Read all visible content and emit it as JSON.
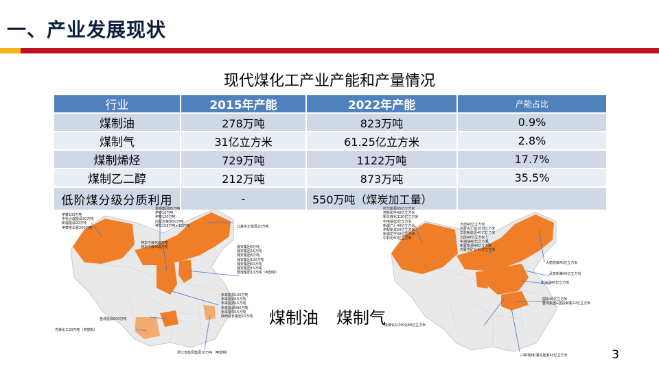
{
  "slide": {
    "title": "一、产业发展现状",
    "page_number": "3",
    "colors": {
      "accent_yellow": "#f2b316",
      "accent_red": "#c0111e",
      "table_header": "#4f81bd",
      "map_orange": "#f07e28"
    }
  },
  "table": {
    "title": "现代煤化工产业产能和产量情况",
    "headers": [
      "行业",
      "2015年产能",
      "2022年产能",
      "产能占比"
    ],
    "rows": [
      [
        "煤制油",
        "278万吨",
        "823万吨",
        "0.9%"
      ],
      [
        "煤制气",
        "31亿立方米",
        "61.25亿立方米",
        "2.8%"
      ],
      [
        "煤制烯烃",
        "729万吨",
        "1122万吨",
        "17.7%"
      ],
      [
        "煤制乙二醇",
        "212万吨",
        "873万吨",
        "35.5%"
      ],
      [
        "低阶煤分级分质利用",
        "-",
        "550万吨（煤炭加工量）",
        ""
      ]
    ]
  },
  "maps": {
    "oil_label": "煤制油",
    "gas_label": "煤制气",
    "oil_annotations": {
      "xinjiang": [
        "伊泰100万吨",
        "中科合成能源20万吨",
        "新疆能源20万吨",
        "伊泰金华晋200万吨"
      ],
      "inner_mongolia": [
        "首钢集团85万吨",
        "伊泰16万吨",
        "伊泰120万吨",
        "内蒙古荣信50万吨",
        "神华108万吨+18万吨"
      ],
      "northeast": [
        "辽鑫中正能源20万吨"
      ],
      "ningxia": [
        "神华宁煤400万吨",
        "神华宁煤400万吨"
      ],
      "shaanxi_right": [
        "潞安集团6万吨",
        "潞安集团16万吨",
        "潞安集团6万吨",
        "潞安集团100万吨",
        "潞安集团60万吨",
        "潞安集团15万吨",
        "晋煤集团10万吨（甲醇制）"
      ],
      "shaanxi_low": [
        "未来能源100万吨",
        "未来能源15万吨",
        "未来能源15万吨",
        "未来能源400万吨",
        "未来能源15万吨",
        "陕西延长集团10万吨"
      ],
      "guizhou": [
        "盘县能源600万吨"
      ],
      "yunnan": [
        "先锋化工20万吨（甲醇制）"
      ],
      "bottom": [
        "浙江省能源集团10万吨（甲醇制）"
      ]
    },
    "gas_annotations": {
      "xinjiang": [
        "庆华能源55亿立方米",
        "若新和丰40亿立方米",
        "新天煤化工20亿立方米",
        "中电投60亿立方米",
        "新疆广汇40亿立方米",
        "伊犁新天20亿立方米",
        "新疆龙宇40亿立方米",
        "中石化80亿立方米"
      ],
      "inner_mongolia": [
        "大唐40亿立方米",
        "内蒙古汇能20亿立方米",
        "华星新能源40亿立方米",
        "北控40亿立方米",
        "中海油40亿立方米",
        "新蒙能源40亿立方米",
        "内蒙古矿业40亿立方米"
      ],
      "beijing": [
        "大唐克旗40亿立方米"
      ],
      "hebei": [
        "武安新峰40亿立方米"
      ],
      "shandong": [
        "中海油40亿立方米"
      ],
      "henan": [
        "国投40亿立方米",
        "晋煤集团&国投新集22亿立方米"
      ],
      "west": [
        "陕煤化&中石化80亿立方米"
      ],
      "south": [
        "三峡/陕煤/湖北能源40亿立方米"
      ]
    }
  }
}
